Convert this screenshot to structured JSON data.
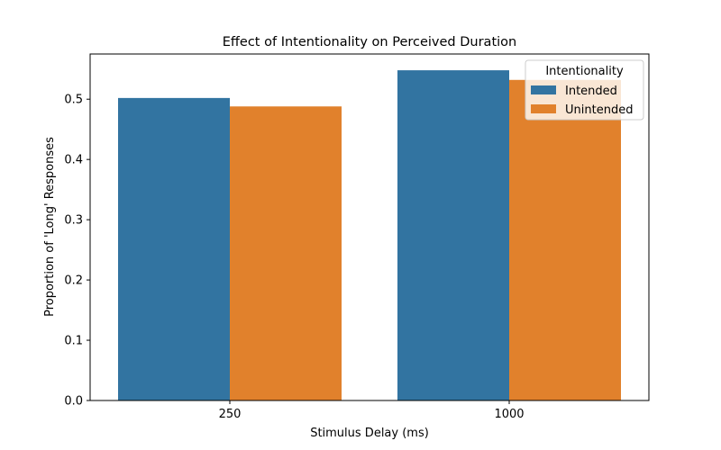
{
  "chart_data": {
    "type": "bar",
    "title": "Effect of Intentionality on Perceived Duration",
    "xlabel": "Stimulus Delay (ms)",
    "ylabel": "Proportion of 'Long' Responses",
    "categories": [
      "250",
      "1000"
    ],
    "series": [
      {
        "name": "Intended",
        "values": [
          0.502,
          0.548
        ],
        "color": "#3274a1"
      },
      {
        "name": "Unintended",
        "values": [
          0.488,
          0.532
        ],
        "color": "#e1812c"
      }
    ],
    "ylim": [
      0,
      0.575
    ],
    "yticks": [
      "0.0",
      "0.1",
      "0.2",
      "0.3",
      "0.4",
      "0.5"
    ],
    "legend": {
      "title": "Intentionality",
      "position": "top-right"
    },
    "grid": false
  }
}
